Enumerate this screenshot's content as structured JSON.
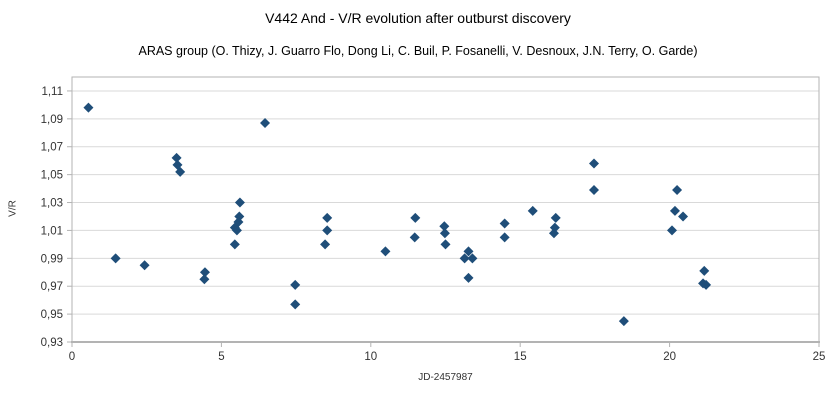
{
  "header": {
    "title": "V442 And - V/R evolution after outburst discovery",
    "subtitle": "ARAS group (O. Thizy, J. Guarro Flo, Dong Li, C. Buil, P. Fosanelli, V. Desnoux, J.N. Terry, O. Garde)"
  },
  "chart_data": {
    "type": "scatter",
    "title": "V442 And - V/R evolution after outburst discovery",
    "subtitle": "ARAS group (O. Thizy, J. Guarro Flo, Dong Li, C. Buil, P. Fosanelli, V. Desnoux, J.N. Terry, O. Garde)",
    "xlabel": "JD-2457987",
    "ylabel": "V/R",
    "xlim": [
      0,
      25
    ],
    "ylim": [
      0.93,
      1.12
    ],
    "grid": "horizontal",
    "legend": "none",
    "x_tick_values": [
      0,
      5,
      10,
      15,
      20,
      25
    ],
    "x_tick_labels": [
      "0",
      "5",
      "10",
      "15",
      "20",
      "25"
    ],
    "y_tick_values": [
      1.11,
      1.09,
      1.07,
      1.05,
      1.03,
      1.01,
      0.99,
      0.97,
      0.95,
      0.93
    ],
    "y_tick_labels": [
      "1,11",
      "1,09",
      "1,07",
      "1,05",
      "1,03",
      "1,01",
      "0,99",
      "0,97",
      "0,95",
      "0,93"
    ],
    "marker": {
      "shape": "diamond",
      "color": "#1f4e79",
      "size": 10
    },
    "series": [
      {
        "name": "V/R",
        "points": [
          [
            0.55,
            1.098
          ],
          [
            1.46,
            0.99
          ],
          [
            2.43,
            0.985
          ],
          [
            3.5,
            1.062
          ],
          [
            3.53,
            1.057
          ],
          [
            3.62,
            1.052
          ],
          [
            4.45,
            0.98
          ],
          [
            4.43,
            0.975
          ],
          [
            5.62,
            1.03
          ],
          [
            5.6,
            1.02
          ],
          [
            5.57,
            1.016
          ],
          [
            5.45,
            1.012
          ],
          [
            5.52,
            1.01
          ],
          [
            5.45,
            1.0
          ],
          [
            6.46,
            1.087
          ],
          [
            7.47,
            0.971
          ],
          [
            7.47,
            0.957
          ],
          [
            8.54,
            1.019
          ],
          [
            8.54,
            1.01
          ],
          [
            8.47,
            1.0
          ],
          [
            10.49,
            0.995
          ],
          [
            11.49,
            1.019
          ],
          [
            11.47,
            1.005
          ],
          [
            12.46,
            1.013
          ],
          [
            12.48,
            1.008
          ],
          [
            12.5,
            1.0
          ],
          [
            13.27,
            0.995
          ],
          [
            13.14,
            0.99
          ],
          [
            13.4,
            0.99
          ],
          [
            13.27,
            0.976
          ],
          [
            14.48,
            1.015
          ],
          [
            14.48,
            1.005
          ],
          [
            15.42,
            1.024
          ],
          [
            16.19,
            1.019
          ],
          [
            16.16,
            1.012
          ],
          [
            16.13,
            1.008
          ],
          [
            17.47,
            1.058
          ],
          [
            17.47,
            1.039
          ],
          [
            18.47,
            0.945
          ],
          [
            20.25,
            1.039
          ],
          [
            20.18,
            1.024
          ],
          [
            20.45,
            1.02
          ],
          [
            20.08,
            1.01
          ],
          [
            21.16,
            0.981
          ],
          [
            21.12,
            0.972
          ],
          [
            21.22,
            0.971
          ]
        ]
      }
    ]
  },
  "colors": {
    "marker": "#1f4e79",
    "gridline": "#d9d9d9",
    "axis_line": "#b3b3b3",
    "tick_text": "#333333",
    "background": "#ffffff"
  }
}
